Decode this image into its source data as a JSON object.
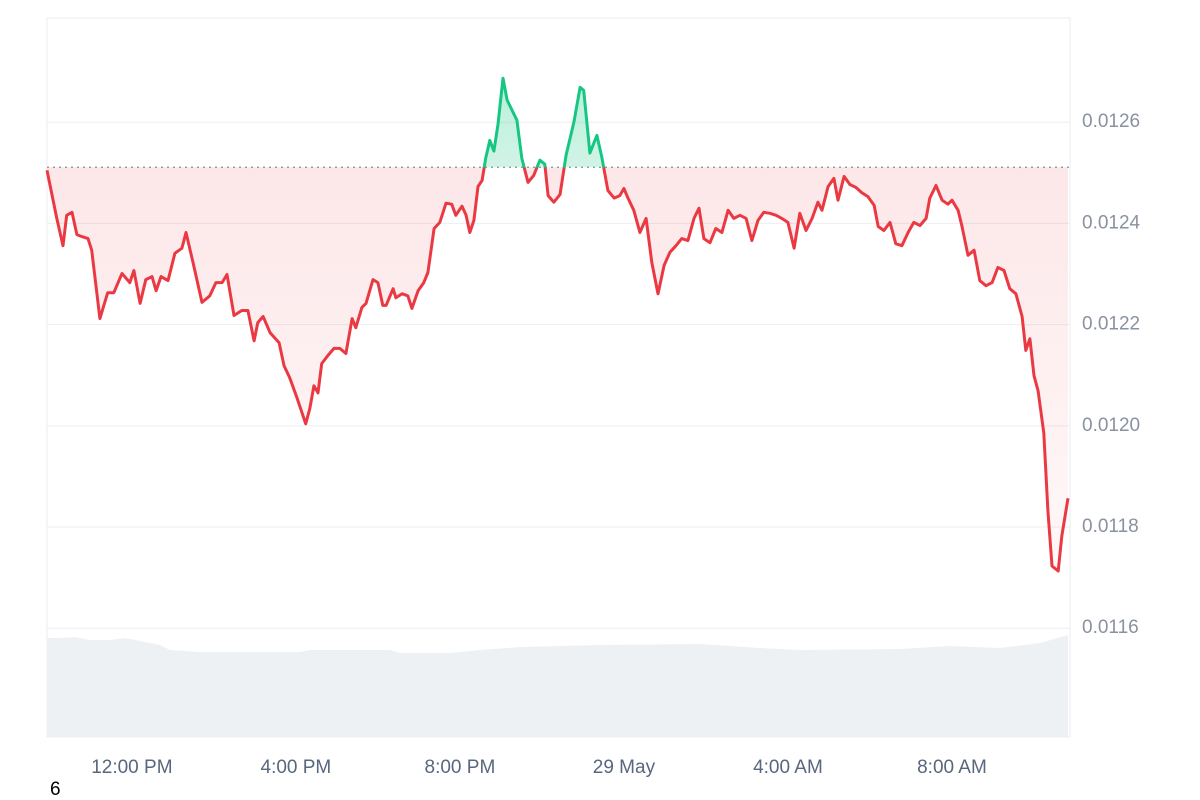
{
  "chart_data": {
    "type": "line",
    "baseline": 0.012511,
    "up_color": "#16c784",
    "down_color": "#ea3943",
    "grid": true,
    "xlim": [
      9.93,
      34.83
    ],
    "xticks": [
      {
        "value": 12,
        "label": "12:00 PM"
      },
      {
        "value": 16,
        "label": "4:00 PM"
      },
      {
        "value": 20,
        "label": "8:00 PM"
      },
      {
        "value": 24,
        "label": "29 May"
      },
      {
        "value": 28,
        "label": "4:00 AM"
      },
      {
        "value": 32,
        "label": "8:00 AM"
      }
    ],
    "ylim": [
      0.011385,
      0.012806
    ],
    "yticks": [
      0.0116,
      0.0118,
      {
        "value": 0.012,
        "label": "0.0120"
      },
      0.0122,
      0.0124,
      0.0126
    ],
    "x": [
      9.93,
      10.17,
      10.32,
      10.41,
      10.54,
      10.66,
      10.78,
      10.93,
      11.02,
      11.22,
      11.41,
      11.56,
      11.76,
      11.95,
      12.05,
      12.2,
      12.34,
      12.49,
      12.59,
      12.71,
      12.88,
      13.05,
      13.22,
      13.32,
      13.49,
      13.71,
      13.9,
      14.05,
      14.2,
      14.32,
      14.49,
      14.68,
      14.83,
      14.98,
      15.07,
      15.2,
      15.37,
      15.59,
      15.71,
      15.85,
      16.02,
      16.24,
      16.34,
      16.44,
      16.54,
      16.63,
      16.78,
      16.93,
      17.07,
      17.22,
      17.37,
      17.46,
      17.61,
      17.71,
      17.88,
      18.0,
      18.12,
      18.2,
      18.37,
      18.44,
      18.59,
      18.73,
      18.83,
      18.98,
      19.12,
      19.22,
      19.37,
      19.51,
      19.66,
      19.8,
      19.9,
      20.05,
      20.15,
      20.24,
      20.34,
      20.44,
      20.54,
      20.63,
      20.73,
      20.83,
      20.93,
      21.05,
      21.15,
      21.27,
      21.39,
      21.51,
      21.66,
      21.8,
      21.95,
      22.07,
      22.15,
      22.29,
      22.44,
      22.59,
      22.78,
      22.93,
      23.02,
      23.17,
      23.34,
      23.46,
      23.61,
      23.76,
      23.9,
      24.0,
      24.1,
      24.24,
      24.39,
      24.54,
      24.68,
      24.83,
      24.98,
      25.12,
      25.27,
      25.41,
      25.56,
      25.71,
      25.83,
      25.95,
      26.1,
      26.24,
      26.39,
      26.54,
      26.68,
      26.83,
      26.98,
      27.12,
      27.27,
      27.41,
      27.56,
      27.71,
      27.85,
      28.0,
      28.15,
      28.29,
      28.44,
      28.59,
      28.73,
      28.83,
      28.98,
      29.12,
      29.22,
      29.37,
      29.51,
      29.66,
      29.8,
      29.95,
      30.1,
      30.2,
      30.34,
      30.49,
      30.63,
      30.78,
      30.93,
      31.07,
      31.22,
      31.37,
      31.46,
      31.61,
      31.76,
      31.9,
      32.0,
      32.15,
      32.24,
      32.39,
      32.54,
      32.68,
      32.83,
      32.98,
      33.12,
      33.27,
      33.41,
      33.56,
      33.71,
      33.8,
      33.9,
      34.0,
      34.1,
      34.24,
      34.34,
      34.44,
      34.59,
      34.68,
      34.83
    ],
    "values": [
      0.012505,
      0.01241,
      0.012356,
      0.012416,
      0.012422,
      0.012378,
      0.012374,
      0.01237,
      0.012347,
      0.012212,
      0.012263,
      0.012263,
      0.012301,
      0.012283,
      0.012307,
      0.012242,
      0.012289,
      0.012295,
      0.012267,
      0.012295,
      0.012287,
      0.012341,
      0.012351,
      0.012382,
      0.012323,
      0.012244,
      0.012257,
      0.012283,
      0.012283,
      0.012299,
      0.012218,
      0.012228,
      0.012228,
      0.012168,
      0.012204,
      0.012216,
      0.012184,
      0.012164,
      0.012119,
      0.012095,
      0.012057,
      0.012004,
      0.012034,
      0.012079,
      0.012065,
      0.012123,
      0.012139,
      0.012153,
      0.012153,
      0.012143,
      0.012212,
      0.012194,
      0.012234,
      0.012242,
      0.012289,
      0.012283,
      0.012238,
      0.012238,
      0.012271,
      0.012253,
      0.012261,
      0.012257,
      0.012232,
      0.012267,
      0.012283,
      0.012303,
      0.01239,
      0.012402,
      0.01244,
      0.012438,
      0.012416,
      0.012434,
      0.012416,
      0.012382,
      0.012406,
      0.012473,
      0.012485,
      0.012529,
      0.012564,
      0.012543,
      0.012596,
      0.012687,
      0.012644,
      0.012624,
      0.012604,
      0.012529,
      0.012481,
      0.012495,
      0.012525,
      0.012517,
      0.012455,
      0.012442,
      0.012457,
      0.012535,
      0.0126,
      0.012669,
      0.012663,
      0.012539,
      0.012574,
      0.012531,
      0.012465,
      0.01245,
      0.012455,
      0.012469,
      0.01245,
      0.012426,
      0.012382,
      0.01241,
      0.012323,
      0.012261,
      0.012317,
      0.012343,
      0.012356,
      0.01237,
      0.012366,
      0.01241,
      0.01243,
      0.01237,
      0.012362,
      0.01239,
      0.012382,
      0.012426,
      0.01241,
      0.012416,
      0.01241,
      0.012366,
      0.012406,
      0.012422,
      0.01242,
      0.012416,
      0.01241,
      0.012402,
      0.012351,
      0.01242,
      0.012386,
      0.01241,
      0.012442,
      0.012426,
      0.012473,
      0.012489,
      0.012446,
      0.012493,
      0.012477,
      0.012471,
      0.012461,
      0.012453,
      0.012436,
      0.012394,
      0.012386,
      0.012402,
      0.01236,
      0.012356,
      0.012382,
      0.012402,
      0.012396,
      0.01241,
      0.01245,
      0.012475,
      0.012446,
      0.012438,
      0.012446,
      0.012426,
      0.012396,
      0.012337,
      0.012347,
      0.012287,
      0.012277,
      0.012283,
      0.012313,
      0.012307,
      0.012271,
      0.012261,
      0.012216,
      0.012149,
      0.012172,
      0.012099,
      0.012069,
      0.011986,
      0.011832,
      0.011723,
      0.011713,
      0.011782,
      0.011857
    ]
  },
  "footer_text": "6"
}
